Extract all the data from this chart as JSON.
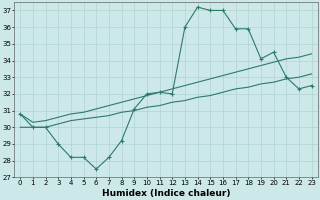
{
  "xlabel": "Humidex (Indice chaleur)",
  "x_hours": [
    0,
    1,
    2,
    3,
    4,
    5,
    6,
    7,
    8,
    9,
    10,
    11,
    12,
    13,
    14,
    15,
    16,
    17,
    18,
    19,
    20,
    21,
    22,
    23
  ],
  "line1_y": [
    30.8,
    30.0,
    30.0,
    29.0,
    28.2,
    28.2,
    27.5,
    28.2,
    29.2,
    31.1,
    32.0,
    32.1,
    32.0,
    36.0,
    37.2,
    37.0,
    37.0,
    35.9,
    35.9,
    34.1,
    34.5,
    33.0,
    32.3,
    32.5
  ],
  "line2_y": [
    30.0,
    30.0,
    30.0,
    30.2,
    30.4,
    30.5,
    30.6,
    30.7,
    30.9,
    31.0,
    31.2,
    31.3,
    31.5,
    31.6,
    31.8,
    31.9,
    32.1,
    32.3,
    32.4,
    32.6,
    32.7,
    32.9,
    33.0,
    33.2
  ],
  "line3_y": [
    30.8,
    30.3,
    30.4,
    30.6,
    30.8,
    30.9,
    31.1,
    31.3,
    31.5,
    31.7,
    31.9,
    32.1,
    32.3,
    32.5,
    32.7,
    32.9,
    33.1,
    33.3,
    33.5,
    33.7,
    33.9,
    34.1,
    34.2,
    34.4
  ],
  "line_color": "#2d7a6a",
  "bg_color": "#cce8e8",
  "grid_color": "#aacccc",
  "ylim_min": 27,
  "ylim_max": 37.5,
  "yticks": [
    27,
    28,
    29,
    30,
    31,
    32,
    33,
    34,
    35,
    36,
    37
  ],
  "xticks": [
    0,
    1,
    2,
    3,
    4,
    5,
    6,
    7,
    8,
    9,
    10,
    11,
    12,
    13,
    14,
    15,
    16,
    17,
    18,
    19,
    20,
    21,
    22,
    23
  ],
  "tick_fontsize": 5.0,
  "xlabel_fontsize": 6.5,
  "marker_size": 3.0,
  "linewidth": 0.8
}
